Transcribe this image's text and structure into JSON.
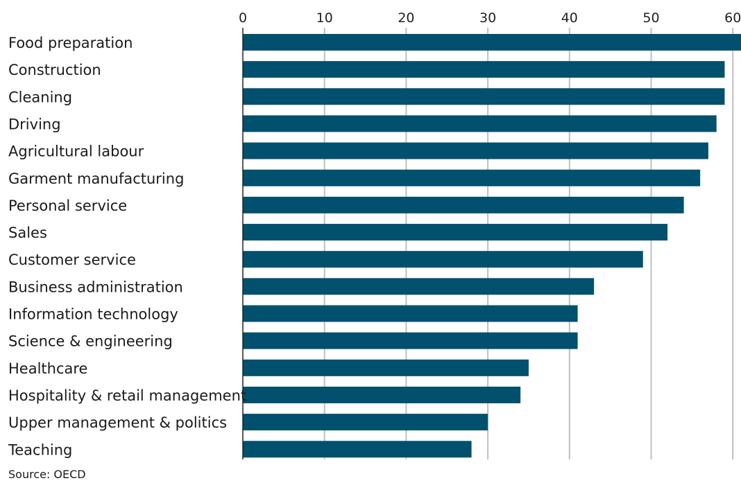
{
  "chart_data": {
    "type": "bar",
    "orientation": "horizontal",
    "categories": [
      "Food preparation",
      "Construction",
      "Cleaning",
      "Driving",
      "Agricultural labour",
      "Garment manufacturing",
      "Personal service",
      "Sales",
      "Customer service",
      "Business administration",
      "Information technology",
      "Science & engineering",
      "Healthcare",
      "Hospitality & retail management",
      "Upper management & politics",
      "Teaching"
    ],
    "values": [
      61,
      59,
      59,
      58,
      57,
      56,
      54,
      52,
      49,
      43,
      41,
      41,
      35,
      34,
      30,
      28
    ],
    "xlim": [
      0,
      61
    ],
    "x_ticks": [
      0,
      10,
      20,
      30,
      40,
      50,
      60
    ],
    "tick_labels": [
      "0",
      "10",
      "20",
      "30",
      "40",
      "50",
      "60"
    ],
    "grid": true,
    "bar_color": "#00506e",
    "grid_color": "#bfbfbf"
  },
  "source": "Source: OECD"
}
